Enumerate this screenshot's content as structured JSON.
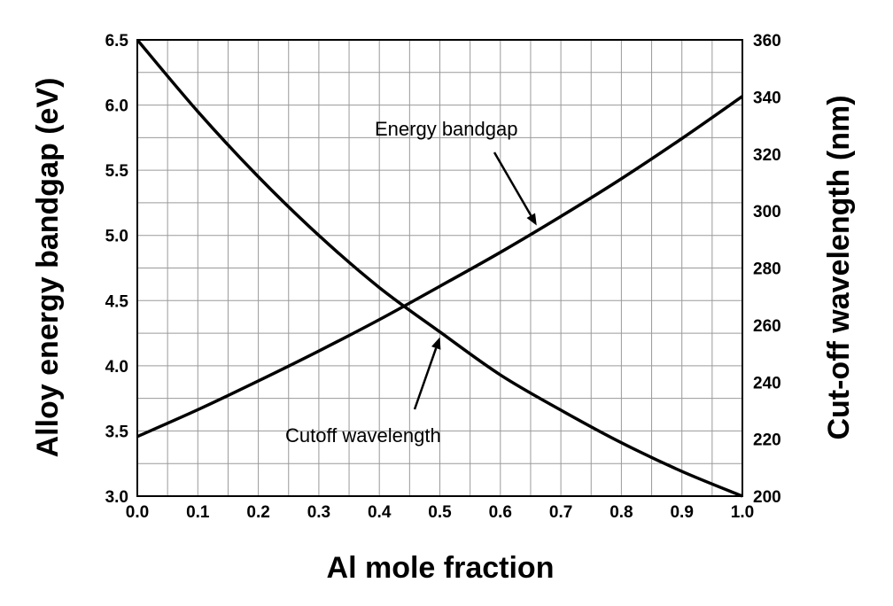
{
  "chart_data": {
    "type": "line",
    "xlabel": "Al mole fraction",
    "ylabel_left": "Alloy energy bandgap (eV)",
    "ylabel_right": "Cut-off wavelength (nm)",
    "xlim": [
      0.0,
      1.0
    ],
    "ylim_left": [
      3.0,
      6.5
    ],
    "ylim_right": [
      200,
      360
    ],
    "x_ticks": [
      "0.0",
      "0.1",
      "0.2",
      "0.3",
      "0.4",
      "0.5",
      "0.6",
      "0.7",
      "0.8",
      "0.9",
      "1.0"
    ],
    "y_ticks_left": [
      "3.0",
      "3.5",
      "4.0",
      "4.5",
      "5.0",
      "5.5",
      "6.0",
      "6.5"
    ],
    "y_ticks_right": [
      "200",
      "220",
      "240",
      "260",
      "280",
      "300",
      "320",
      "340",
      "360"
    ],
    "grid": true,
    "x_minor_per_major": 2,
    "y_left_minor_per_major": 2,
    "series": [
      {
        "axis": "right",
        "x": [
          0.0,
          0.1,
          0.2,
          0.3,
          0.4,
          0.5,
          0.6,
          0.7,
          0.8,
          0.9,
          1.0
        ],
        "values": [
          220.9,
          230.3,
          240.4,
          250.9,
          261.9,
          273.6,
          285.5,
          298.1,
          311.3,
          325.4,
          340.2
        ]
      },
      {
        "axis": "left",
        "x": [
          0.0,
          0.1,
          0.2,
          0.3,
          0.4,
          0.5,
          0.6,
          0.7,
          0.8,
          0.9,
          1.0
        ],
        "values": [
          6.5,
          5.95,
          5.45,
          5.0,
          4.6,
          4.26,
          3.93,
          3.66,
          3.41,
          3.19,
          3.0
        ]
      }
    ],
    "annotations": [
      {
        "text": "Energy bandgap",
        "series_index": 0,
        "arrow_x": 0.66
      },
      {
        "text": "Cutoff wavelength",
        "series_index": 1,
        "arrow_x": 0.5
      }
    ]
  }
}
